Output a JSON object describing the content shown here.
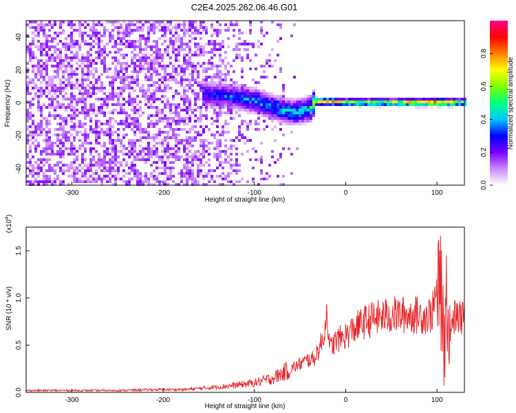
{
  "title": "C2E4.2025.262.06.46.G01",
  "chart_data": [
    {
      "type": "heatmap",
      "xlabel": "Height of straight line (km)",
      "ylabel": "Frequency (Hz)",
      "xlim": [
        -350,
        130
      ],
      "ylim": [
        -50,
        50
      ],
      "xticks": [
        -300,
        -200,
        -100,
        0,
        100
      ],
      "yticks": [
        -40,
        -20,
        0,
        20,
        40
      ],
      "colorbar": {
        "label": "Normalized spectral amplitude",
        "range": [
          0,
          1
        ],
        "ticks": [
          "0.0",
          "0.2",
          "0.4",
          "0.6",
          "0.8"
        ],
        "colors": [
          "#ffffff",
          "#cc88ff",
          "#7a00ff",
          "#0000ff",
          "#00c8ff",
          "#00ff80",
          "#80ff00",
          "#ffff00",
          "#ff8000",
          "#ff0000",
          "#ff0080"
        ]
      },
      "features": {
        "noise_region_x": [
          -350,
          -160
        ],
        "noise_amplitude": 0.15,
        "signal_track": [
          {
            "x": -160,
            "freq": 6,
            "amp": 0.3
          },
          {
            "x": -130,
            "freq": 5,
            "amp": 0.35
          },
          {
            "x": -100,
            "freq": 2,
            "amp": 0.4
          },
          {
            "x": -80,
            "freq": -2,
            "amp": 0.4
          },
          {
            "x": -60,
            "freq": -5,
            "amp": 0.45
          },
          {
            "x": -40,
            "freq": -3,
            "amp": 0.5
          },
          {
            "x": -35,
            "freq": 2,
            "amp": 0.8
          },
          {
            "x": 0,
            "freq": 1,
            "amp": 0.7
          },
          {
            "x": 50,
            "freq": 1,
            "amp": 0.7
          },
          {
            "x": 100,
            "freq": 1,
            "amp": 0.9
          },
          {
            "x": 130,
            "freq": 1,
            "amp": 0.6
          }
        ]
      }
    },
    {
      "type": "line",
      "xlabel": "Height of straight line (km)",
      "ylabel": "SNR (10 * v/v)",
      "multiplier": "(x10",
      "multiplier_exp": "4",
      "xlim": [
        -350,
        130
      ],
      "ylim": [
        0,
        1.75
      ],
      "xticks": [
        -300,
        -200,
        -100,
        0,
        100
      ],
      "yticks": [
        "0.0",
        "0.5",
        "1.0",
        "1.5"
      ],
      "color": "#e8262a",
      "series": [
        {
          "x": [
            -350,
            -300,
            -250,
            -200,
            -175,
            -150,
            -125,
            -100,
            -80,
            -60,
            -50,
            -40,
            -35,
            -30,
            -25,
            -22,
            -20,
            -18,
            -15,
            -10,
            0,
            10,
            20,
            30,
            40,
            50,
            60,
            70,
            80,
            90,
            95,
            100,
            103,
            105,
            108,
            110,
            115,
            120,
            125,
            130
          ],
          "y": [
            0.02,
            0.02,
            0.02,
            0.03,
            0.03,
            0.05,
            0.07,
            0.1,
            0.15,
            0.25,
            0.3,
            0.35,
            0.35,
            0.45,
            0.55,
            0.75,
            0.9,
            0.45,
            0.5,
            0.55,
            0.6,
            0.68,
            0.74,
            0.78,
            0.8,
            0.82,
            0.82,
            0.82,
            0.82,
            0.81,
            0.85,
            1.1,
            1.3,
            0.9,
            0.6,
            1.0,
            0.78,
            0.8,
            0.78,
            0.78
          ]
        }
      ]
    }
  ]
}
